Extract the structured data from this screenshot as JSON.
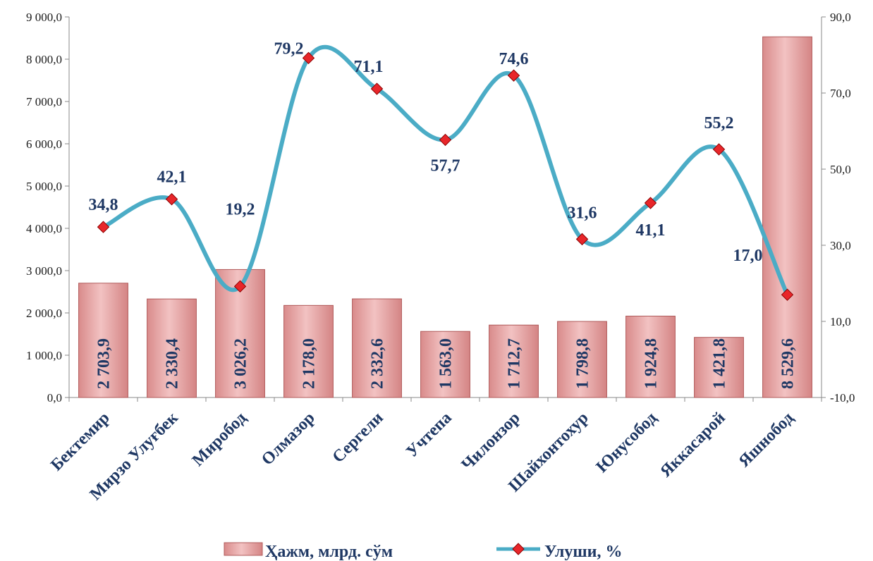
{
  "chart_data": {
    "type": "bar",
    "categories": [
      "Бектемир",
      "Мирзо Улуғбек",
      "Миробод",
      "Олмазор",
      "Сергели",
      "Учтепа",
      "Чилонзор",
      "Шайхонтохур",
      "Юнусобод",
      "Яккасарой",
      "Яшнобод"
    ],
    "series": [
      {
        "name": "Ҳажм, млрд. сўм",
        "type": "bar",
        "axis": "left",
        "values": [
          2703.9,
          2330.4,
          3026.2,
          2178.0,
          2332.6,
          1563.0,
          1712.7,
          1798.8,
          1924.8,
          1421.8,
          8529.6
        ],
        "labels": [
          "2 703,9",
          "2 330,4",
          "3 026,2",
          "2 178,0",
          "2 332,6",
          "1 563,0",
          "1 712,7",
          "1 798,8",
          "1 924,8",
          "1 421,8",
          "8 529,6"
        ],
        "color": "#e6a4a4"
      },
      {
        "name": "Улуши, %",
        "type": "line",
        "axis": "right",
        "values": [
          34.8,
          42.1,
          19.2,
          79.2,
          71.1,
          57.7,
          74.6,
          31.6,
          41.1,
          55.2,
          17.0
        ],
        "labels": [
          "34,8",
          "42,1",
          "19,2",
          "79,2",
          "71,1",
          "57,7",
          "74,6",
          "31,6",
          "41,1",
          "55,2",
          "17,0"
        ],
        "color": "#4bacc6",
        "marker_color": "#e8262a"
      }
    ],
    "y_left": {
      "ylim": [
        0,
        9000
      ],
      "ticks": [
        "0,0",
        "1 000,0",
        "2 000,0",
        "3 000,0",
        "4 000,0",
        "5 000,0",
        "6 000,0",
        "7 000,0",
        "8 000,0",
        "9 000,0"
      ]
    },
    "y_right": {
      "ylim": [
        -10,
        90
      ],
      "ticks": [
        "-10,0",
        "10,0",
        "30,0",
        "50,0",
        "70,0",
        "90,0"
      ]
    },
    "grid": false,
    "legend_position": "bottom"
  }
}
